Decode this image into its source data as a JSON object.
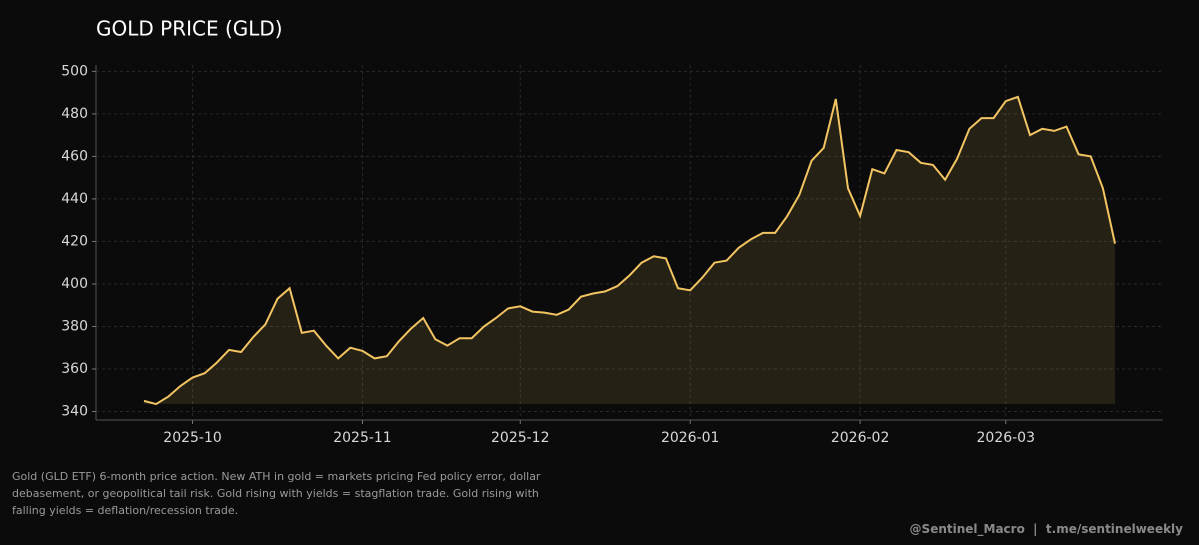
{
  "chart_data": {
    "type": "line",
    "title": "GOLD PRICE (GLD)",
    "categories": [
      null,
      null,
      null,
      null,
      "2025-10",
      null,
      null,
      null,
      null,
      null,
      null,
      null,
      null,
      null,
      null,
      null,
      null,
      null,
      "2025-11",
      null,
      null,
      null,
      null,
      null,
      null,
      null,
      null,
      null,
      null,
      null,
      null,
      "2025-12",
      null,
      null,
      null,
      null,
      null,
      null,
      null,
      null,
      null,
      null,
      null,
      null,
      null,
      "2026-01",
      null,
      null,
      null,
      null,
      null,
      null,
      null,
      null,
      null,
      null,
      null,
      null,
      null,
      "2026-02",
      null,
      null,
      null,
      null,
      null,
      null,
      null,
      null,
      null,
      null,
      null,
      "2026-03",
      null,
      null,
      null,
      null,
      null,
      null,
      null,
      null,
      null
    ],
    "series": [
      {
        "name": "GLD",
        "color": "#f2c462",
        "values": [
          345,
          343.5,
          347,
          352,
          356,
          358,
          363,
          369,
          368,
          375,
          381,
          393,
          398,
          377,
          378,
          371,
          365,
          370,
          368.5,
          365,
          366,
          373,
          379,
          384,
          374,
          371,
          374.5,
          374.5,
          380,
          384,
          388.5,
          389.5,
          387,
          386.5,
          385.5,
          388,
          394,
          395.5,
          396.5,
          399,
          404,
          410,
          413,
          412,
          398,
          397,
          403,
          410,
          411,
          417,
          421,
          424,
          424,
          432,
          442,
          458,
          464,
          487,
          445,
          432,
          454,
          452,
          463,
          462,
          457,
          456,
          449,
          459,
          473,
          478,
          478,
          486,
          488,
          470,
          473,
          472,
          474,
          461,
          460,
          445,
          419
        ]
      }
    ],
    "ylim": [
      336,
      503
    ],
    "yticks": [
      340,
      360,
      380,
      400,
      420,
      440,
      460,
      480,
      500
    ],
    "grid": true,
    "caption": "Gold (GLD ETF) 6-month price action. New ATH in gold = markets pricing Fed policy error, dollar debasement, or geopolitical tail risk. Gold rising with yields = stagflation trade. Gold rising with falling yields = deflation/recession trade.",
    "footer": "@Sentinel_Macro  |  t.me/sentinelweekly"
  }
}
